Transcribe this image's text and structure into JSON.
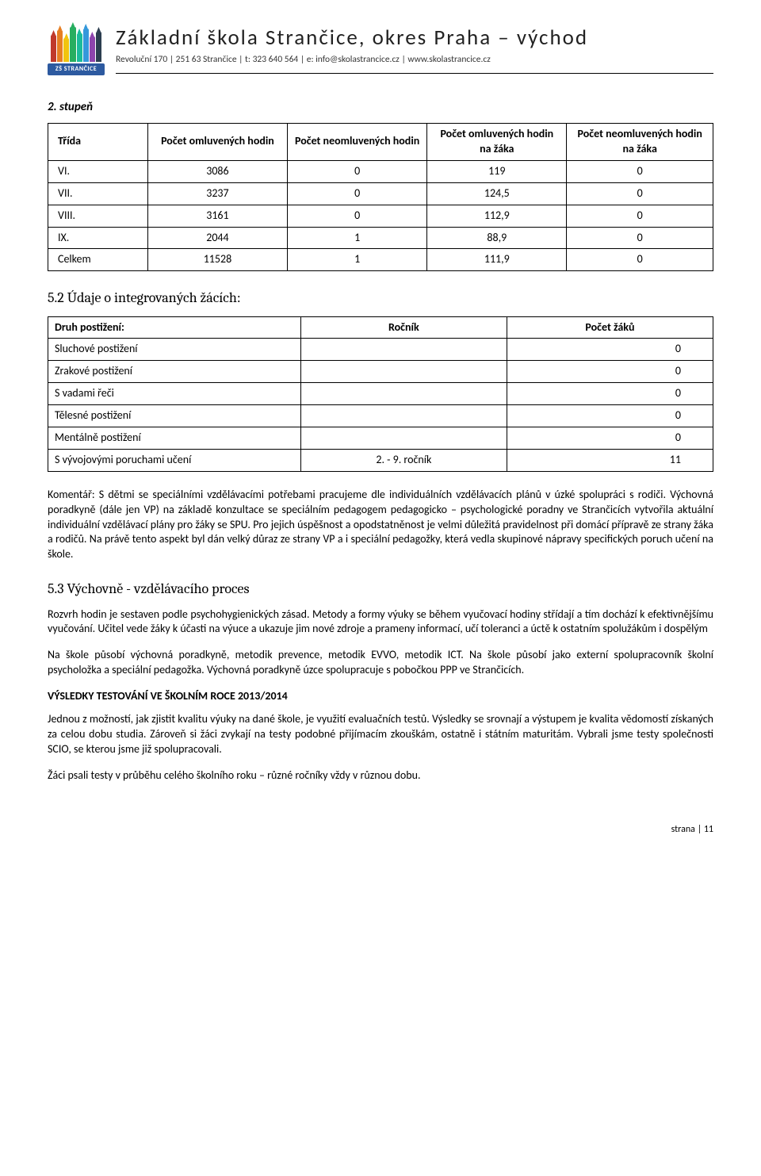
{
  "header": {
    "school_name": "Základní škola Strančice, okres Praha – východ",
    "subtitle": "Revoluční 170 | 251 63 Strančice | t: 323 640 564 | e: info@skolastrancice.cz | www.skolastrancice.cz",
    "logo_text": "ZŠ STRANČICE",
    "logo_crayon_colors": [
      "#c0392b",
      "#e67e22",
      "#f1c40f",
      "#27ae60",
      "#1abc9c",
      "#3498db",
      "#8e44ad",
      "#2c3e50"
    ],
    "logo_crayon_heights": [
      34,
      40,
      30,
      44,
      36,
      42,
      32,
      38
    ]
  },
  "stage": {
    "heading": "2. stupeň",
    "table": {
      "columns": [
        "Třída",
        "Počet omluvených hodin",
        "Počet neomluvených hodin",
        "Počet omluvených hodin na žáka",
        "Počet neomluvených hodin na žáka"
      ],
      "rows": [
        [
          "VI.",
          "3086",
          "0",
          "119",
          "0"
        ],
        [
          "VII.",
          "3237",
          "0",
          "124,5",
          "0"
        ],
        [
          "VIII.",
          "3161",
          "0",
          "112,9",
          "0"
        ],
        [
          "IX.",
          "2044",
          "1",
          "88,9",
          "0"
        ],
        [
          "Celkem",
          "11528",
          "1",
          "111,9",
          "0"
        ]
      ],
      "col_widths_pct": [
        15,
        21,
        21,
        21,
        22
      ],
      "border_color": "#000000"
    }
  },
  "sec52": {
    "heading": "5.2   Údaje o integrovaných žácích:",
    "table": {
      "columns": [
        "Druh postižení:",
        "Ročník",
        "Počet žáků"
      ],
      "rows": [
        [
          "Sluchové postižení",
          "",
          "0"
        ],
        [
          "Zrakové postižení",
          "",
          "0"
        ],
        [
          "S vadami řeči",
          "",
          "0"
        ],
        [
          "Tělesné postižení",
          "",
          "0"
        ],
        [
          "Mentálně postižení",
          "",
          "0"
        ],
        [
          "S vývojovými poruchami učení",
          "2. - 9. ročník",
          "11"
        ]
      ],
      "col_widths_pct": [
        38,
        31,
        31
      ]
    }
  },
  "para_comment": "Komentář: S dětmi se speciálními vzdělávacími potřebami pracujeme dle individuálních vzdělávacích plánů v úzké spolupráci s rodiči. Výchovná poradkyně (dále jen VP) na základě konzultace se speciálním pedagogem pedagogicko – psychologické poradny ve Strančicích vytvořila aktuální individuální vzdělávací plány pro žáky se SPU. Pro jejich úspěšnost a opodstatněnost je velmi důležitá pravidelnost při domácí přípravě ze strany žáka a rodičů. Na právě tento aspekt byl dán velký důraz ze strany VP a i speciální pedagožky, která vedla skupinové nápravy specifických poruch učení na škole.",
  "sec53": {
    "heading": "5.3   Výchovně - vzdělávacího proces",
    "p1": "Rozvrh hodin je sestaven podle psychohygienických zásad. Metody a formy výuky se během vyučovací hodiny střídají a tím dochází k efektivnějšímu vyučování. Učitel vede žáky k účasti na výuce a ukazuje jim nové zdroje a prameny informací, učí toleranci a úctě k ostatním spolužákům i dospělým",
    "p2": "Na škole působí výchovná poradkyně, metodik prevence, metodik EVVO, metodik ICT. Na škole působí jako externí spolupracovník školní psycholožka a speciální pedagožka. Výchovná poradkyně úzce spolupracuje s pobočkou PPP ve Strančicích.",
    "bold": "VÝSLEDKY TESTOVÁNÍ VE ŠKOLNÍM ROCE 2013/2014",
    "p3": "Jednou z možností, jak zjistit kvalitu výuky na dané škole, je využití evaluačních testů. Výsledky se srovnají a výstupem je kvalita vědomostí získaných za celou dobu studia. Zároveň si žáci zvykají na testy podobné přijímacím zkouškám, ostatně i státním maturitám. Vybrali jsme testy společnosti SCIO, se kterou jsme již spolupracovali.",
    "p4": "Žáci psali testy v průběhu celého školního roku – různé ročníky vždy v různou dobu."
  },
  "footer": "strana | 11"
}
